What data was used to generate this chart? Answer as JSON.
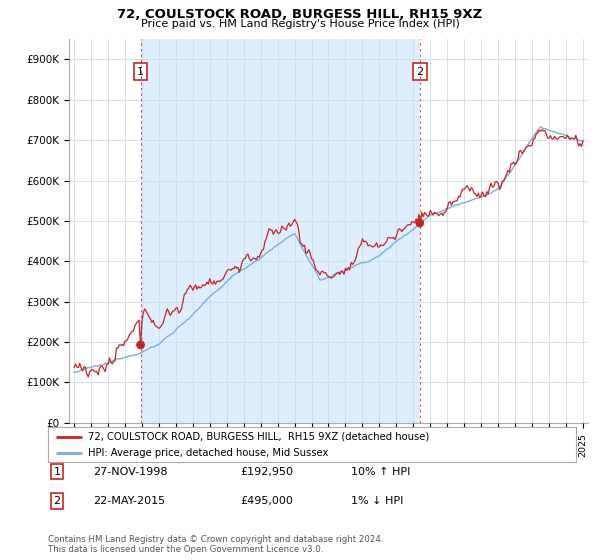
{
  "title": "72, COULSTOCK ROAD, BURGESS HILL, RH15 9XZ",
  "subtitle": "Price paid vs. HM Land Registry's House Price Index (HPI)",
  "legend_line1": "72, COULSTOCK ROAD, BURGESS HILL,  RH15 9XZ (detached house)",
  "legend_line2": "HPI: Average price, detached house, Mid Sussex",
  "annotation1_date": "27-NOV-1998",
  "annotation1_price": 192950,
  "annotation1_hpi": "10% ↑ HPI",
  "annotation2_date": "22-MAY-2015",
  "annotation2_price": 495000,
  "annotation2_hpi": "1% ↓ HPI",
  "footer": "Contains HM Land Registry data © Crown copyright and database right 2024.\nThis data is licensed under the Open Government Licence v3.0.",
  "hpi_color": "#7ab0d4",
  "price_color": "#cc2222",
  "dot_color": "#cc2222",
  "shade_color": "#ddeeff",
  "background_color": "#ffffff",
  "grid_color": "#ccddee",
  "ylim": [
    0,
    950000
  ],
  "yticks": [
    0,
    100000,
    200000,
    300000,
    400000,
    500000,
    600000,
    700000,
    800000,
    900000
  ],
  "ytick_labels": [
    "£0",
    "£100K",
    "£200K",
    "£300K",
    "£400K",
    "£500K",
    "£600K",
    "£700K",
    "£800K",
    "£900K"
  ],
  "sale1_year": 1998.92,
  "sale2_year": 2015.38,
  "xmin": 1994.7,
  "xmax": 2025.3
}
